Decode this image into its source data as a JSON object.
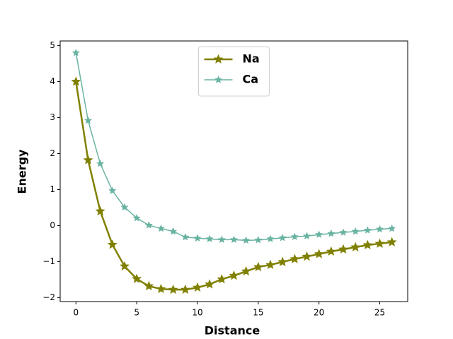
{
  "chart_data": {
    "type": "line",
    "xlabel": "Distance",
    "ylabel": "Energy",
    "x": [
      0,
      1,
      2,
      3,
      4,
      5,
      6,
      7,
      8,
      9,
      10,
      11,
      12,
      13,
      14,
      15,
      16,
      17,
      18,
      19,
      20,
      21,
      22,
      23,
      24,
      25,
      26
    ],
    "series": [
      {
        "name": "Na",
        "color": "#808000",
        "values": [
          4.0,
          1.82,
          0.4,
          -0.53,
          -1.13,
          -1.48,
          -1.68,
          -1.76,
          -1.78,
          -1.78,
          -1.72,
          -1.63,
          -1.49,
          -1.39,
          -1.27,
          -1.15,
          -1.09,
          -1.01,
          -0.93,
          -0.86,
          -0.79,
          -0.72,
          -0.66,
          -0.6,
          -0.54,
          -0.5,
          -0.46
        ]
      },
      {
        "name": "Ca",
        "color": "#69b3a2",
        "values": [
          4.8,
          2.92,
          1.72,
          0.97,
          0.51,
          0.21,
          0.01,
          -0.08,
          -0.16,
          -0.32,
          -0.35,
          -0.37,
          -0.39,
          -0.39,
          -0.41,
          -0.4,
          -0.37,
          -0.34,
          -0.31,
          -0.29,
          -0.25,
          -0.22,
          -0.19,
          -0.16,
          -0.13,
          -0.1,
          -0.08
        ]
      }
    ],
    "xlim": [
      -1.3,
      27.3
    ],
    "xticks": [
      0,
      5,
      10,
      15,
      20,
      25
    ],
    "ylim": [
      -2.11,
      5.13
    ],
    "yticks": [
      {
        "value": -2,
        "label": "−2"
      },
      {
        "value": -1,
        "label": "−1"
      },
      0,
      1,
      2,
      3,
      4,
      5
    ],
    "legend": "upper center"
  }
}
